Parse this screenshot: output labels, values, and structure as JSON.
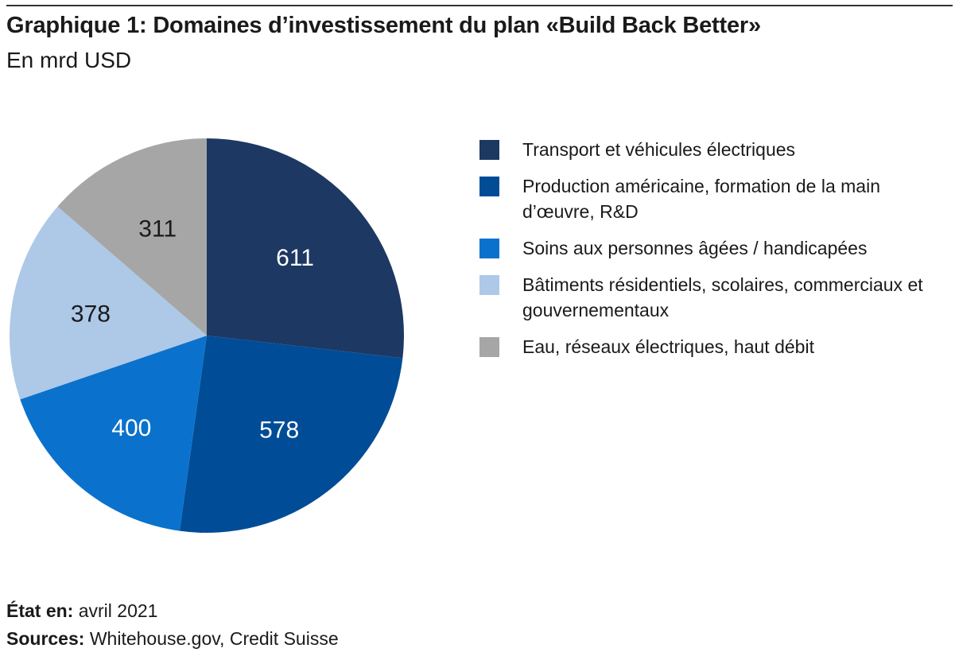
{
  "title": "Graphique 1: Domaines d’investissement du plan «Build Back Better»",
  "subtitle": "En mrd USD",
  "footer": {
    "date_label": "État en:",
    "date_value": "avril 2021",
    "sources_label": "Sources:",
    "sources_value": "Whitehouse.gov, Credit Suisse"
  },
  "chart_data": {
    "type": "pie",
    "title": "Graphique 1: Domaines d’investissement du plan «Build Back Better»",
    "subtitle": "En mrd USD",
    "legend_position": "right",
    "start_angle": "12 o'clock, clockwise",
    "slices": [
      {
        "label": "Transport et véhicules électriques",
        "value": 611,
        "color": "#1d3862",
        "text_color": "#ffffff"
      },
      {
        "label": "Production américaine, formation de la main d’œuvre, R&D",
        "value": 578,
        "color": "#004c97",
        "text_color": "#ffffff"
      },
      {
        "label": "Soins aux personnes âgées / handicapées",
        "value": 400,
        "color": "#0a72cc",
        "text_color": "#ffffff"
      },
      {
        "label": "Bâtiments résidentiels, scolaires, commerciaux et gouvernementaux",
        "value": 378,
        "color": "#aec8e8",
        "text_color": "#1a1a1a"
      },
      {
        "label": "Eau, réseaux électriques, haut débit",
        "value": 311,
        "color": "#a6a6a6",
        "text_color": "#1a1a1a"
      }
    ]
  }
}
